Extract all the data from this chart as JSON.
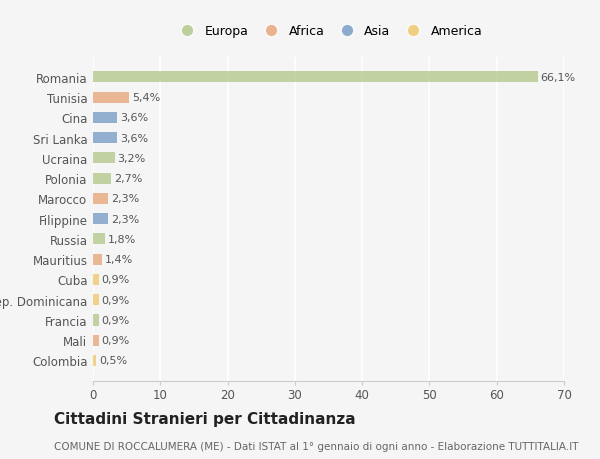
{
  "countries": [
    "Romania",
    "Tunisia",
    "Cina",
    "Sri Lanka",
    "Ucraina",
    "Polonia",
    "Marocco",
    "Filippine",
    "Russia",
    "Mauritius",
    "Cuba",
    "Rep. Dominicana",
    "Francia",
    "Mali",
    "Colombia"
  ],
  "values": [
    66.1,
    5.4,
    3.6,
    3.6,
    3.2,
    2.7,
    2.3,
    2.3,
    1.8,
    1.4,
    0.9,
    0.9,
    0.9,
    0.9,
    0.5
  ],
  "labels": [
    "66,1%",
    "5,4%",
    "3,6%",
    "3,6%",
    "3,2%",
    "2,7%",
    "2,3%",
    "2,3%",
    "1,8%",
    "1,4%",
    "0,9%",
    "0,9%",
    "0,9%",
    "0,9%",
    "0,5%"
  ],
  "continents": [
    "Europa",
    "Africa",
    "Asia",
    "Asia",
    "Europa",
    "Europa",
    "Africa",
    "Asia",
    "Europa",
    "Africa",
    "America",
    "America",
    "Europa",
    "Africa",
    "America"
  ],
  "continent_colors": {
    "Europa": "#b5c98e",
    "Africa": "#e8a87c",
    "Asia": "#7b9ec7",
    "America": "#f0c96e"
  },
  "legend_order": [
    "Europa",
    "Africa",
    "Asia",
    "America"
  ],
  "title": "Cittadini Stranieri per Cittadinanza",
  "subtitle": "COMUNE DI ROCCALUMERA (ME) - Dati ISTAT al 1° gennaio di ogni anno - Elaborazione TUTTITALIA.IT",
  "xlim": [
    0,
    70
  ],
  "xticks": [
    0,
    10,
    20,
    30,
    40,
    50,
    60,
    70
  ],
  "background_color": "#f5f5f5",
  "bar_height": 0.55,
  "grid_color": "#ffffff",
  "tick_label_fontsize": 8.5,
  "bar_label_fontsize": 8,
  "title_fontsize": 11,
  "subtitle_fontsize": 7.5
}
